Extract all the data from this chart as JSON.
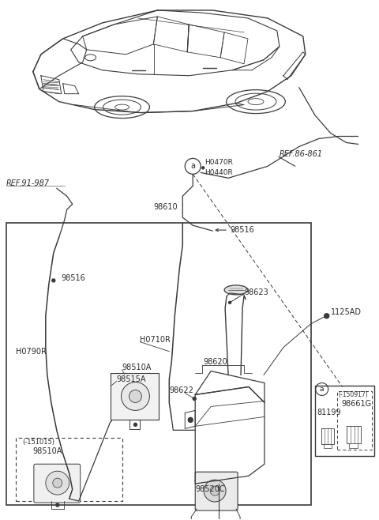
{
  "bg_color": "#ffffff",
  "line_color": "#3a3a3a",
  "text_color": "#2a2a2a",
  "fig_width": 4.8,
  "fig_height": 6.58,
  "dpi": 100,
  "xlim": [
    0,
    480
  ],
  "ylim": [
    0,
    658
  ]
}
